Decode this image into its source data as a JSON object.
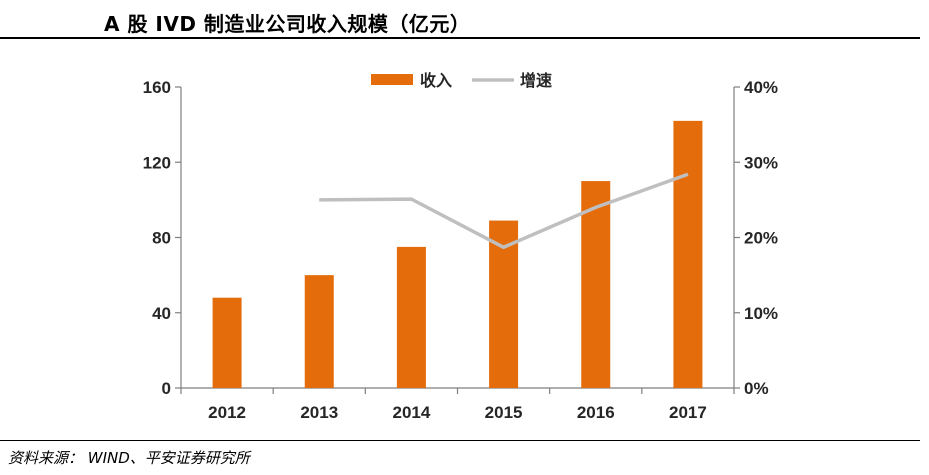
{
  "title": "A 股 IVD 制造业公司收入规模（亿元）",
  "source": "资料来源：  WIND、平安证券研究所",
  "colors": {
    "bar": "#E46C0A",
    "line": "#BFBFBF",
    "axis": "#7F7F7F",
    "text": "#262626"
  },
  "chart_data": {
    "type": "bar",
    "categories": [
      "2012",
      "2013",
      "2014",
      "2015",
      "2016",
      "2017"
    ],
    "series": [
      {
        "name": "收入",
        "type": "bar",
        "axis": "left",
        "values": [
          48,
          60,
          75,
          89,
          110,
          142
        ]
      },
      {
        "name": "增速",
        "type": "line",
        "axis": "right",
        "values": [
          null,
          0.25,
          0.251,
          0.187,
          0.24,
          0.284
        ]
      }
    ],
    "y_left": {
      "min": 0,
      "max": 160,
      "ticks": [
        "0",
        "40",
        "80",
        "120",
        "160"
      ]
    },
    "y_right": {
      "min": 0,
      "max": 0.4,
      "ticks": [
        "0%",
        "10%",
        "20%",
        "30%",
        "40%"
      ]
    },
    "legend": {
      "position": "top-center",
      "items": [
        "收入",
        "增速"
      ]
    },
    "grid": false
  }
}
